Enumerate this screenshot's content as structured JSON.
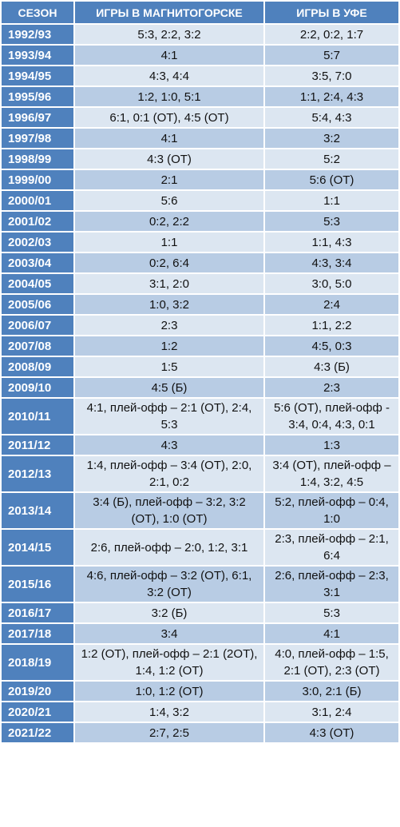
{
  "table": {
    "columns": [
      "СЕЗОН",
      "ИГРЫ В МАГНИТОГОРСКЕ",
      "ИГРЫ В УФЕ"
    ],
    "rows": [
      [
        "1992/93",
        "5:3, 2:2, 3:2",
        "2:2, 0:2, 1:7"
      ],
      [
        "1993/94",
        "4:1",
        "5:7"
      ],
      [
        "1994/95",
        "4:3, 4:4",
        "3:5, 7:0"
      ],
      [
        "1995/96",
        "1:2, 1:0, 5:1",
        "1:1, 2:4, 4:3"
      ],
      [
        "1996/97",
        "6:1, 0:1 (ОТ), 4:5 (ОТ)",
        "5:4, 4:3"
      ],
      [
        "1997/98",
        "4:1",
        "3:2"
      ],
      [
        "1998/99",
        "4:3 (ОТ)",
        "5:2"
      ],
      [
        "1999/00",
        "2:1",
        "5:6 (ОТ)"
      ],
      [
        "2000/01",
        "5:6",
        "1:1"
      ],
      [
        "2001/02",
        "0:2, 2:2",
        "5:3"
      ],
      [
        "2002/03",
        "1:1",
        "1:1, 4:3"
      ],
      [
        "2003/04",
        "0:2, 6:4",
        "4:3, 3:4"
      ],
      [
        "2004/05",
        "3:1, 2:0",
        "3:0, 5:0"
      ],
      [
        "2005/06",
        "1:0, 3:2",
        "2:4"
      ],
      [
        "2006/07",
        "2:3",
        "1:1, 2:2"
      ],
      [
        "2007/08",
        "1:2",
        "4:5, 0:3"
      ],
      [
        "2008/09",
        "1:5",
        "4:3 (Б)"
      ],
      [
        "2009/10",
        "4:5 (Б)",
        "2:3"
      ],
      [
        "2010/11",
        "4:1, плей-офф – 2:1 (ОТ), 2:4, 5:3",
        "5:6 (ОТ), плей-офф - 3:4, 0:4, 4:3, 0:1"
      ],
      [
        "2011/12",
        "4:3",
        "1:3"
      ],
      [
        "2012/13",
        "1:4, плей-офф – 3:4 (ОТ), 2:0, 2:1, 0:2",
        "3:4 (ОТ), плей-офф – 1:4, 3:2, 4:5"
      ],
      [
        "2013/14",
        "3:4 (Б), плей-офф – 3:2, 3:2 (ОТ), 1:0 (ОТ)",
        "5:2, плей-офф – 0:4, 1:0"
      ],
      [
        "2014/15",
        "2:6, плей-офф – 2:0, 1:2, 3:1",
        "2:3, плей-офф – 2:1, 6:4"
      ],
      [
        "2015/16",
        "4:6, плей-офф – 3:2 (ОТ), 6:1, 3:2 (ОТ)",
        "2:6, плей-офф – 2:3, 3:1"
      ],
      [
        "2016/17",
        "3:2 (Б)",
        "5:3"
      ],
      [
        "2017/18",
        "3:4",
        "4:1"
      ],
      [
        "2018/19",
        "1:2 (ОТ), плей-офф – 2:1 (2ОТ), 1:4, 1:2 (ОТ)",
        "4:0, плей-офф – 1:5, 2:1 (ОТ), 2:3 (ОТ)"
      ],
      [
        "2019/20",
        "1:0, 1:2 (ОТ)",
        "3:0, 2:1 (Б)"
      ],
      [
        "2020/21",
        "1:4, 3:2",
        "3:1, 2:4"
      ],
      [
        "2021/22",
        "2:7, 2:5",
        "4:3 (ОТ)"
      ]
    ]
  }
}
